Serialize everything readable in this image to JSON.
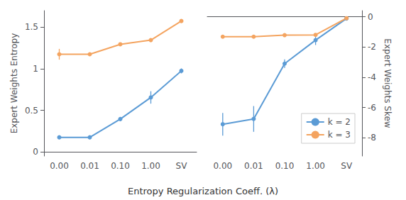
{
  "chart_data": [
    {
      "type": "line",
      "xlabel": "Entropy Regularization Coeff. (λ)",
      "ylabel": "Expert Weights Entropy",
      "categories": [
        "0.00",
        "0.01",
        "0.10",
        "1.00",
        "SV"
      ],
      "series": [
        {
          "color": "#5b9bd5",
          "marker": "circle",
          "values": [
            0.175,
            0.175,
            0.395,
            0.655,
            0.975
          ],
          "errors": [
            0.02,
            0.015,
            0.025,
            0.075,
            0.03
          ]
        },
        {
          "color": "#f4a460",
          "marker": "circle",
          "values": [
            1.175,
            1.175,
            1.295,
            1.345,
            1.575
          ],
          "errors": [
            0.065,
            0.02,
            0.02,
            0.015,
            0.015
          ]
        }
      ],
      "ylim": [
        -0.05,
        1.7
      ],
      "yticks": [
        0,
        0.5,
        1,
        1.5
      ],
      "grid": false
    },
    {
      "type": "line",
      "ylabel": "Expert Weights Skew",
      "categories": [
        "0.00",
        "0.01",
        "0.10",
        "1.00",
        "SV"
      ],
      "series": [
        {
          "name": "k = 2",
          "color": "#5b9bd5",
          "marker": "circle",
          "values": [
            -7.1,
            -6.75,
            -3.1,
            -1.55,
            -0.12
          ],
          "errors": [
            0.75,
            0.85,
            0.28,
            0.32,
            0.08
          ]
        },
        {
          "name": "k = 3",
          "color": "#f4a460",
          "marker": "circle",
          "values": [
            -1.32,
            -1.32,
            -1.22,
            -1.2,
            -0.1
          ],
          "errors": [
            0.04,
            0.04,
            0.04,
            0.04,
            0.04
          ]
        }
      ],
      "ylim": [
        -9.2,
        0.4
      ],
      "yticks": [
        0,
        -2,
        -4,
        -6,
        -8
      ],
      "grid": false,
      "legend": "lower right"
    }
  ]
}
